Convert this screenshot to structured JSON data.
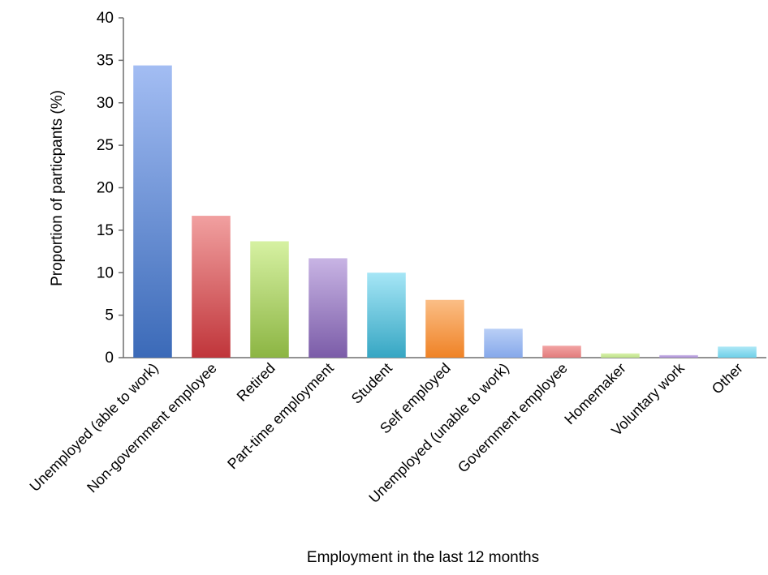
{
  "chart_data": {
    "type": "bar",
    "title": "",
    "xlabel": "Employment in the last 12 months",
    "ylabel": "Proportion of particpants (%)",
    "ylim": [
      0,
      40
    ],
    "yticks": [
      "0",
      "5",
      "10",
      "15",
      "20",
      "25",
      "30",
      "35",
      "40"
    ],
    "grid": false,
    "legend": "none",
    "categories": [
      "Unemployed (able to work)",
      "Non-government employee",
      "Retired",
      "Part-time employment",
      "Student",
      "Self employed",
      "Unemployed (unable to work)",
      "Government employee",
      "Homemaker",
      "Voluntary work",
      "Other"
    ],
    "values": [
      34.4,
      16.7,
      13.7,
      11.7,
      10.0,
      6.8,
      3.4,
      1.4,
      0.5,
      0.3,
      1.3
    ],
    "colors": [
      [
        "#a3bdf3",
        "#3b6ab8"
      ],
      [
        "#f1a0a0",
        "#c0353a"
      ],
      [
        "#d6f1a2",
        "#8cb543"
      ],
      [
        "#c8b4e4",
        "#7b5ca8"
      ],
      [
        "#a6e6f6",
        "#36a6c3"
      ],
      [
        "#fbbe86",
        "#ef8225"
      ],
      [
        "#b9cff6",
        "#86a8ea"
      ],
      [
        "#f2a3a3",
        "#e27c7c"
      ],
      [
        "#d9f1ab",
        "#bde28a"
      ],
      [
        "#cdb9e8",
        "#a78ad4"
      ],
      [
        "#aee8f6",
        "#6ecfe8"
      ]
    ]
  }
}
